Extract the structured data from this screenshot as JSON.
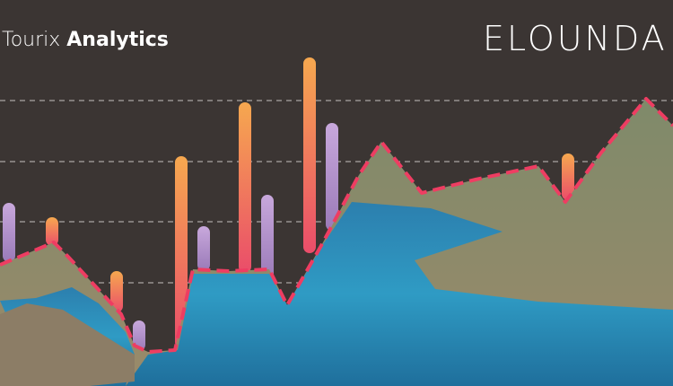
{
  "header": {
    "brand": "Tourix",
    "product": "Analytics",
    "place": "ELOUNDA"
  }
}
